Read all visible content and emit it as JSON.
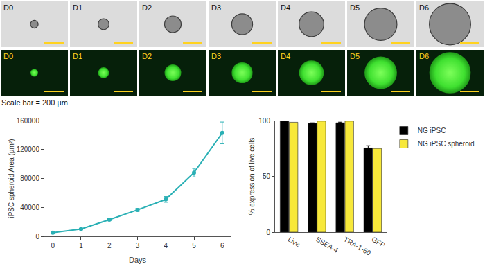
{
  "image_panels": {
    "days": [
      "D0",
      "D1",
      "D2",
      "D3",
      "D4",
      "D5",
      "D6"
    ],
    "scale_bar_um": 200,
    "scale_bar_label": "Scale bar = 200 µm"
  },
  "chart_data": [
    {
      "type": "line",
      "x": [
        0,
        1,
        2,
        3,
        4,
        5,
        6
      ],
      "values": [
        5000,
        10000,
        23000,
        36500,
        51000,
        88000,
        143000
      ],
      "errors": [
        1000,
        1000,
        1500,
        2000,
        4000,
        6000,
        15000
      ],
      "color": "#2ab0b5",
      "marker": "circle",
      "xlim": [
        -0.3,
        6.3
      ],
      "xticks": [
        0,
        1,
        2,
        3,
        4,
        5,
        6
      ],
      "ylim": [
        0,
        160000
      ],
      "yticks": [
        0,
        40000,
        80000,
        120000,
        160000
      ],
      "x_label": "Days",
      "y_label": "iPSC spheroid Area (µm²)",
      "grid": false
    },
    {
      "type": "bar",
      "categories": [
        "Live",
        "SSEA-4",
        "TRA-1-60",
        "GFP"
      ],
      "series": [
        {
          "name": "NG iPSC",
          "color": "#000000",
          "values": [
            99.5,
            97.5,
            98,
            75.5
          ],
          "errors": [
            0.3,
            0.5,
            0.6,
            2
          ]
        },
        {
          "name": "NG iPSC spheroid",
          "color": "#f7e83a",
          "values": [
            98.5,
            99.5,
            99.5,
            75
          ]
        }
      ],
      "ylim": [
        0,
        100
      ],
      "yticks": [
        0,
        50,
        100
      ],
      "y_label": "% expression of live cells",
      "legend": "right",
      "grid": false
    }
  ]
}
